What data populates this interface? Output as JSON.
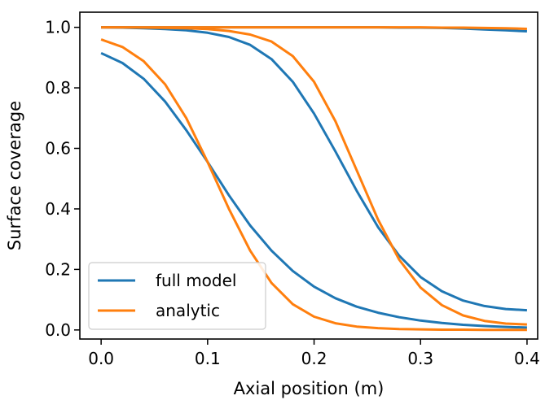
{
  "chart_data": {
    "type": "line",
    "title": "",
    "xlabel": "Axial position (m)",
    "ylabel": "Surface coverage",
    "xlim": [
      -0.02,
      0.41
    ],
    "ylim": [
      -0.03,
      1.05
    ],
    "xticks": [
      0.0,
      0.1,
      0.2,
      0.3,
      0.4
    ],
    "xtick_labels": [
      "0.0",
      "0.1",
      "0.2",
      "0.3",
      "0.4"
    ],
    "yticks": [
      0.0,
      0.2,
      0.4,
      0.6,
      0.8,
      1.0
    ],
    "ytick_labels": [
      "0.0",
      "0.2",
      "0.4",
      "0.6",
      "0.8",
      "1.0"
    ],
    "grid": false,
    "legend_position": "lower-left",
    "legend": [
      {
        "label": "full model",
        "color": "#1f77b4"
      },
      {
        "label": "analytic",
        "color": "#ff7f0e"
      }
    ],
    "x": [
      0.0,
      0.02,
      0.04,
      0.06,
      0.08,
      0.1,
      0.12,
      0.14,
      0.16,
      0.18,
      0.2,
      0.22,
      0.24,
      0.26,
      0.28,
      0.3,
      0.32,
      0.34,
      0.36,
      0.38,
      0.4
    ],
    "series": [
      {
        "color": "#1f77b4",
        "values": [
          0.915,
          0.882,
          0.83,
          0.755,
          0.66,
          0.555,
          0.445,
          0.345,
          0.262,
          0.195,
          0.143,
          0.105,
          0.077,
          0.057,
          0.042,
          0.031,
          0.023,
          0.017,
          0.013,
          0.01,
          0.008
        ]
      },
      {
        "color": "#ff7f0e",
        "values": [
          0.96,
          0.935,
          0.888,
          0.812,
          0.7,
          0.555,
          0.4,
          0.262,
          0.155,
          0.085,
          0.044,
          0.022,
          0.011,
          0.006,
          0.003,
          0.002,
          0.001,
          0.001,
          0.0,
          0.0,
          0.0
        ]
      },
      {
        "color": "#1f77b4",
        "values": [
          1.0,
          0.999,
          0.997,
          0.994,
          0.99,
          0.982,
          0.968,
          0.942,
          0.895,
          0.82,
          0.715,
          0.59,
          0.46,
          0.34,
          0.245,
          0.175,
          0.128,
          0.097,
          0.079,
          0.069,
          0.065
        ]
      },
      {
        "color": "#ff7f0e",
        "values": [
          1.0,
          1.0,
          0.999,
          0.998,
          0.997,
          0.994,
          0.988,
          0.976,
          0.953,
          0.905,
          0.82,
          0.69,
          0.528,
          0.365,
          0.232,
          0.14,
          0.082,
          0.048,
          0.03,
          0.021,
          0.018
        ]
      },
      {
        "color": "#1f77b4",
        "values": [
          1.0,
          1.0,
          1.0,
          1.0,
          1.0,
          1.0,
          1.0,
          1.0,
          1.0,
          1.0,
          1.0,
          1.0,
          1.0,
          1.0,
          0.999,
          0.999,
          0.998,
          0.996,
          0.993,
          0.99,
          0.987
        ]
      },
      {
        "color": "#ff7f0e",
        "values": [
          1.0,
          1.0,
          1.0,
          1.0,
          1.0,
          1.0,
          1.0,
          1.0,
          1.0,
          1.0,
          1.0,
          1.0,
          1.0,
          1.0,
          1.0,
          1.0,
          0.999,
          0.999,
          0.998,
          0.997,
          0.995
        ]
      }
    ]
  }
}
